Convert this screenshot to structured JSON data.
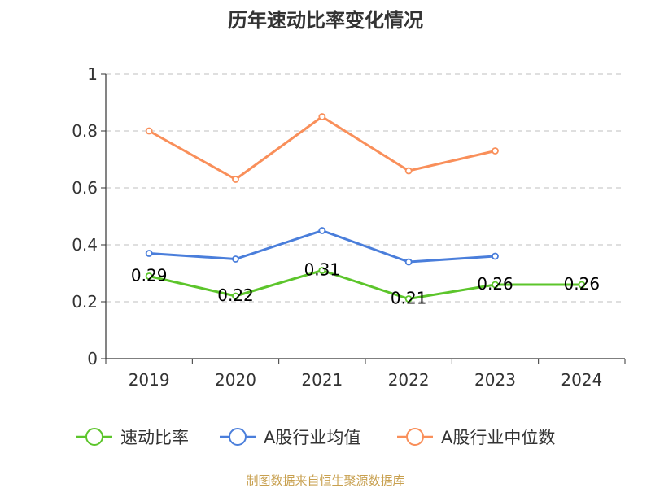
{
  "chart_data": {
    "type": "line",
    "title": "历年速动比率变化情况",
    "categories": [
      "2019",
      "2020",
      "2021",
      "2022",
      "2023",
      "2024"
    ],
    "ylim": [
      0,
      1
    ],
    "yticks": [
      "0",
      "0.2",
      "0.4",
      "0.6",
      "0.8",
      "1"
    ],
    "grid": true,
    "legend_position": "bottom",
    "series": [
      {
        "name": "速动比率",
        "color": "#5cc52b",
        "values": [
          0.29,
          0.22,
          0.31,
          0.21,
          0.26,
          0.26
        ],
        "labels": [
          "0.29",
          "0.22",
          "0.31",
          "0.21",
          "0.26",
          "0.26"
        ]
      },
      {
        "name": "A股行业均值",
        "color": "#4a7edb",
        "values": [
          0.37,
          0.35,
          0.45,
          0.34,
          0.36,
          null
        ]
      },
      {
        "name": "A股行业中位数",
        "color": "#f98f5a",
        "values": [
          0.8,
          0.63,
          0.85,
          0.66,
          0.73,
          null
        ]
      }
    ],
    "source": "制图数据来自恒生聚源数据库"
  }
}
